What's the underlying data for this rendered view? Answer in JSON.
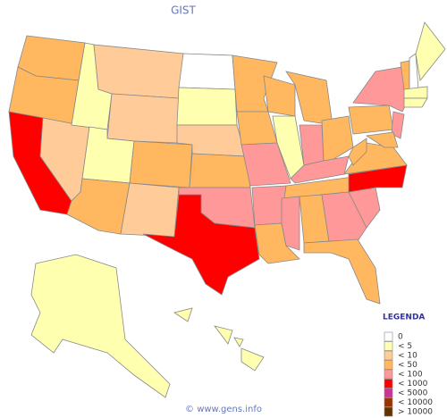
{
  "map": {
    "title": "GIST",
    "regions": [
      3,
      3,
      5,
      2,
      1,
      2,
      2,
      1,
      3,
      3,
      2,
      0,
      1,
      2,
      3,
      4,
      5,
      3,
      3,
      4,
      4,
      3,
      3,
      1,
      3,
      4,
      3,
      4,
      3,
      4,
      3,
      4,
      3,
      4,
      5,
      3,
      3,
      3,
      4,
      4,
      3,
      3,
      0,
      1,
      1,
      1,
      1,
      1,
      1,
      1,
      1
    ]
  },
  "legend": {
    "title": "LEGENDA",
    "items": [
      {
        "label": "0",
        "color": "#ffffff"
      },
      {
        "label": "< 5",
        "color": "#ffffb0"
      },
      {
        "label": "< 10",
        "color": "#ffcc99"
      },
      {
        "label": "< 50",
        "color": "#ffb860"
      },
      {
        "label": "< 100",
        "color": "#ff9999"
      },
      {
        "label": "< 1000",
        "color": "#ff0000"
      },
      {
        "label": "< 5000",
        "color": "#cc3399"
      },
      {
        "label": "< 10000",
        "color": "#993300"
      },
      {
        "label": "> 10000",
        "color": "#663300"
      }
    ]
  },
  "footer": "© www.gens.info"
}
